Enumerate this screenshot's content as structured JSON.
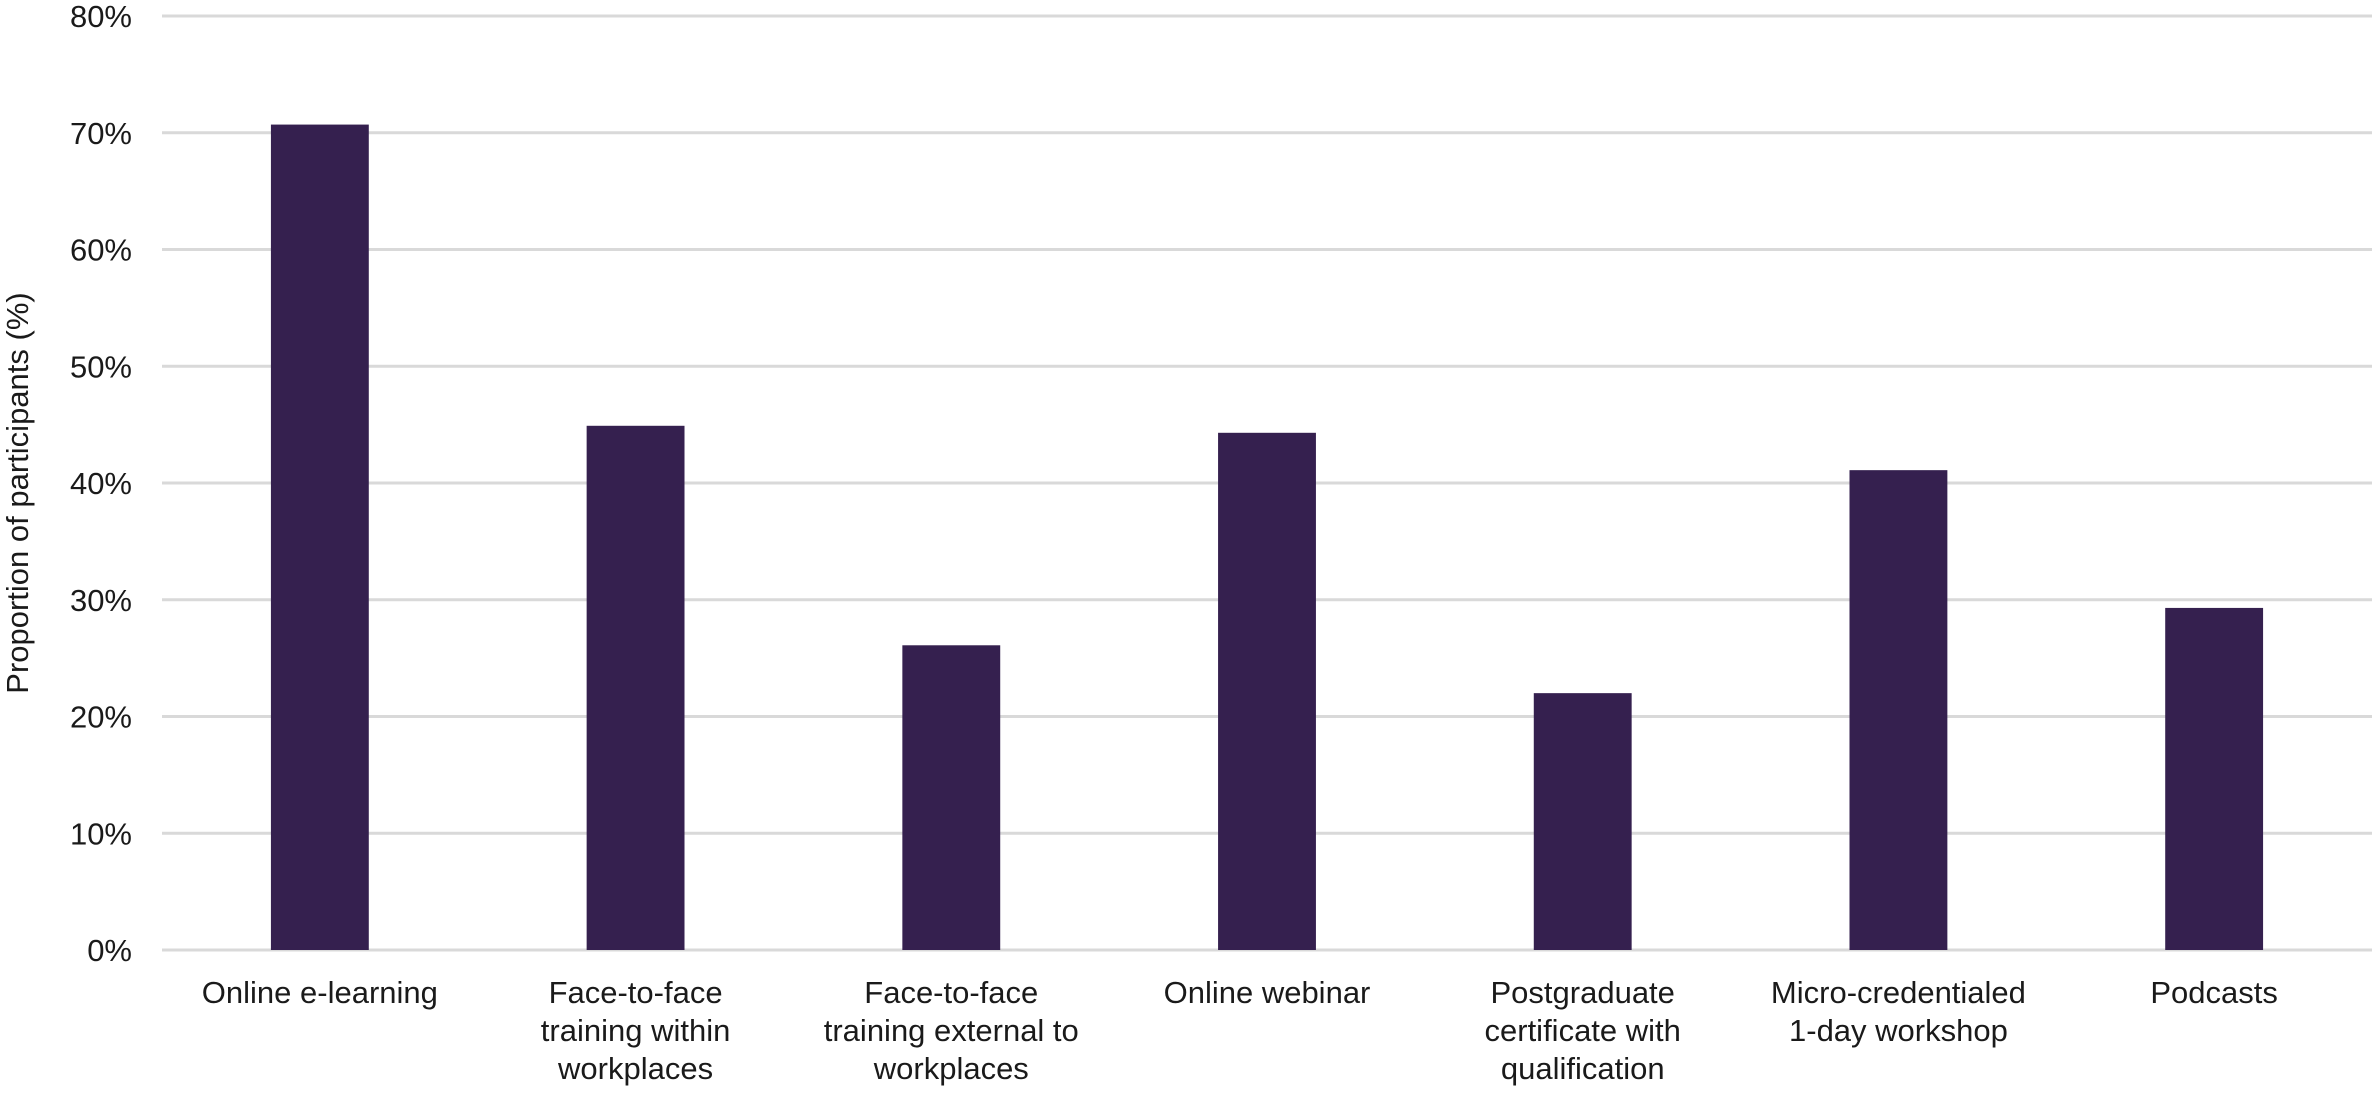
{
  "chart_data": {
    "type": "bar",
    "title": "",
    "xlabel": "",
    "ylabel": "Proportion of participants (%)",
    "ylim": [
      0,
      80
    ],
    "yticks": [
      "0%",
      "10%",
      "20%",
      "30%",
      "40%",
      "50%",
      "60%",
      "70%",
      "80%"
    ],
    "grid": true,
    "bar_color": "#35204f",
    "categories": [
      [
        "Online e-learning"
      ],
      [
        "Face-to-face",
        "training within",
        "workplaces"
      ],
      [
        "Face-to-face",
        "training external to",
        "workplaces"
      ],
      [
        "Online webinar"
      ],
      [
        "Postgraduate",
        "certificate with",
        "qualification"
      ],
      [
        "Micro-credentialed",
        "1-day workshop"
      ],
      [
        "Podcasts"
      ]
    ],
    "values": [
      70.7,
      44.9,
      26.1,
      44.3,
      22.0,
      41.1,
      29.3
    ]
  }
}
